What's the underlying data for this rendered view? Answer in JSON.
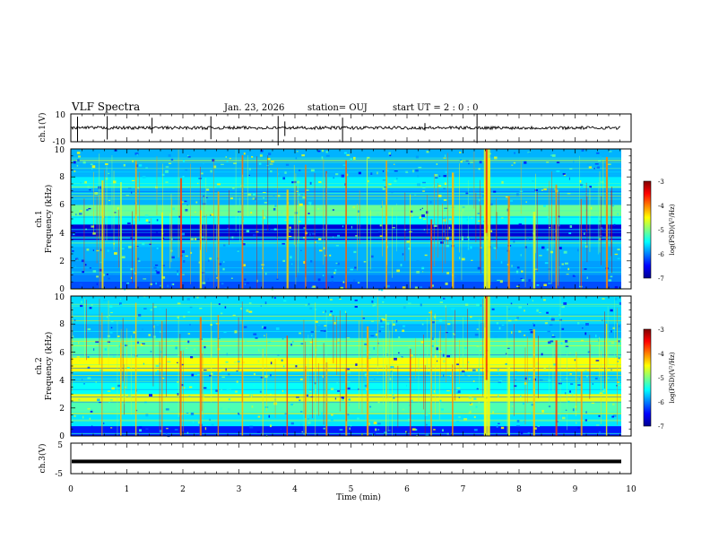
{
  "chart_data": {
    "type": "heatmap",
    "title": "VLF Spectra",
    "date": "Jan. 23, 2026",
    "station": "station= OUJ",
    "start_ut": "start  UT =   2 : 0  : 0",
    "xlabel": "Time  (min)",
    "x_ticks": [
      "0",
      "1",
      "2",
      "3",
      "4",
      "5",
      "6",
      "7",
      "8",
      "9",
      "10"
    ],
    "xlim": [
      0,
      10
    ],
    "colormap": [
      "#00008f",
      "#0000ff",
      "#0080ff",
      "#00ffff",
      "#80ff80",
      "#ffff00",
      "#ff8000",
      "#ff0000",
      "#800000"
    ],
    "panels": [
      {
        "id": "ch1-waveform",
        "kind": "waveform",
        "ylabel": "ch.1(V)",
        "y_ticks": [
          "10",
          "-10"
        ],
        "ylim": [
          -10,
          10
        ],
        "trace_color": "#000000"
      },
      {
        "id": "ch1-spectrogram",
        "kind": "spectrogram",
        "ylabel_line1": "ch.1",
        "ylabel_line2": "Frequency  (kHz)",
        "y_ticks": [
          "0",
          "2",
          "4",
          "6",
          "8",
          "10"
        ],
        "ylim": [
          0,
          10
        ],
        "colorbar": {
          "label": "log(PSD)(V²/Hz)",
          "ticks": [
            "-3",
            "-4",
            "-5",
            "-6",
            "-7"
          ],
          "range": [
            -7,
            -3
          ]
        },
        "bands": [
          {
            "f0": 0.0,
            "f1": 0.6,
            "v": 0.2
          },
          {
            "f0": 0.6,
            "f1": 1.0,
            "v": 0.25
          },
          {
            "f0": 1.0,
            "f1": 2.0,
            "v": 0.28
          },
          {
            "f0": 2.0,
            "f1": 3.0,
            "v": 0.3
          },
          {
            "f0": 3.0,
            "f1": 3.5,
            "v": 0.32
          },
          {
            "f0": 3.5,
            "f1": 4.6,
            "v": 0.08
          },
          {
            "f0": 4.6,
            "f1": 5.2,
            "v": 0.38
          },
          {
            "f0": 5.2,
            "f1": 6.0,
            "v": 0.48
          },
          {
            "f0": 6.0,
            "f1": 7.2,
            "v": 0.3
          },
          {
            "f0": 7.2,
            "f1": 8.0,
            "v": 0.36
          },
          {
            "f0": 8.0,
            "f1": 10.0,
            "v": 0.3
          }
        ]
      },
      {
        "id": "ch2-spectrogram",
        "kind": "spectrogram",
        "ylabel_line1": "ch.2",
        "ylabel_line2": "Frequency  (kHz)",
        "y_ticks": [
          "0",
          "2",
          "4",
          "6",
          "8",
          "10"
        ],
        "ylim": [
          0,
          10
        ],
        "colorbar": {
          "label": "log(PSD)(V²/Hz)",
          "ticks": [
            "-3",
            "-4",
            "-5",
            "-6",
            "-7"
          ],
          "range": [
            -7,
            -3
          ]
        },
        "bands": [
          {
            "f0": 0.0,
            "f1": 0.7,
            "v": 0.15
          },
          {
            "f0": 0.7,
            "f1": 1.6,
            "v": 0.35
          },
          {
            "f0": 1.6,
            "f1": 2.4,
            "v": 0.45
          },
          {
            "f0": 2.4,
            "f1": 3.0,
            "v": 0.6
          },
          {
            "f0": 3.0,
            "f1": 3.8,
            "v": 0.38
          },
          {
            "f0": 3.8,
            "f1": 4.6,
            "v": 0.32
          },
          {
            "f0": 4.6,
            "f1": 5.6,
            "v": 0.62
          },
          {
            "f0": 5.6,
            "f1": 7.0,
            "v": 0.45
          },
          {
            "f0": 7.0,
            "f1": 8.0,
            "v": 0.3
          },
          {
            "f0": 8.0,
            "f1": 10.0,
            "v": 0.34
          }
        ]
      },
      {
        "id": "ch3-waveform",
        "kind": "waveform",
        "ylabel": "ch.3(V)",
        "y_ticks": [
          "5",
          "-5"
        ],
        "ylim": [
          -5,
          5
        ],
        "trace_value": -1.0,
        "trace_color": "#000000"
      }
    ],
    "burst_times_min": [
      0.55,
      0.88,
      1.15,
      1.62,
      1.95,
      2.3,
      2.62,
      3.05,
      3.42,
      3.85,
      4.18,
      4.55,
      4.9,
      5.28,
      5.62,
      6.05,
      6.42,
      6.8,
      7.38,
      7.45,
      7.8,
      8.25,
      8.65,
      9.1,
      9.55
    ]
  }
}
